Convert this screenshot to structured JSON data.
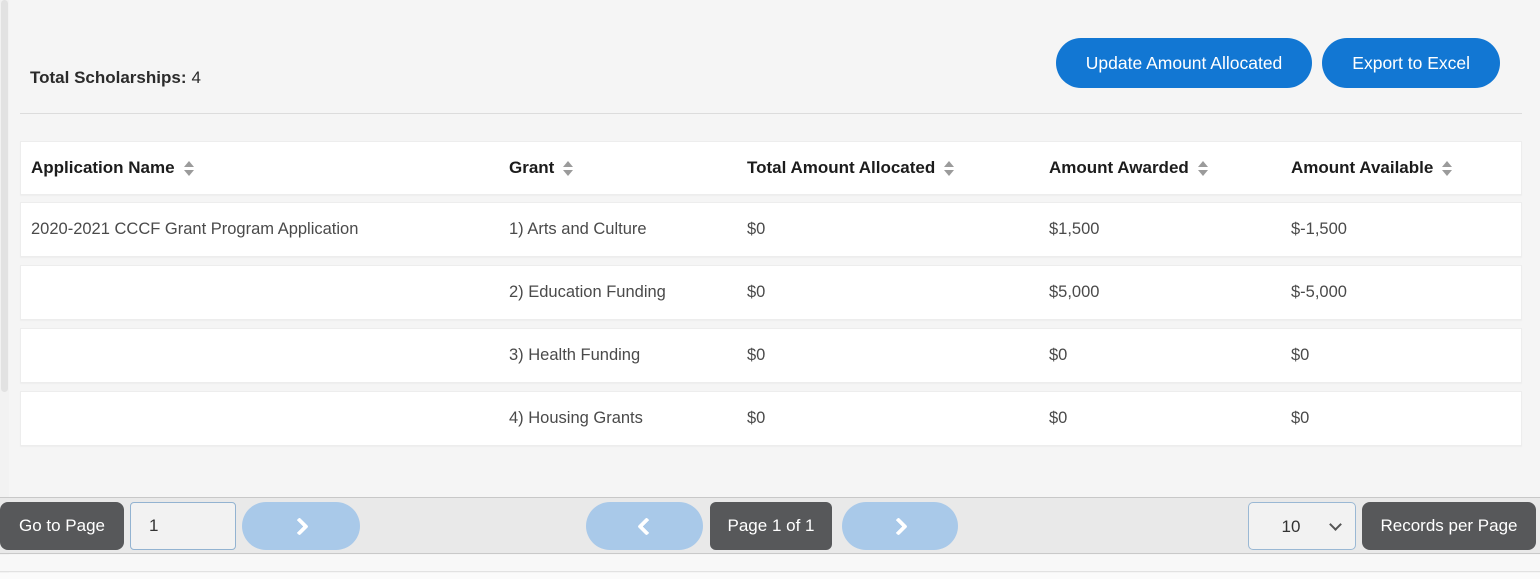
{
  "summary": {
    "label": "Total Scholarships:",
    "value": "4"
  },
  "toolbar": {
    "update_button": "Update Amount Allocated",
    "export_button": "Export to Excel"
  },
  "table": {
    "columns": [
      {
        "label": "Application Name",
        "sortable": true
      },
      {
        "label": "Grant",
        "sortable": true
      },
      {
        "label": "Total Amount Allocated",
        "sortable": true
      },
      {
        "label": "Amount Awarded",
        "sortable": true
      },
      {
        "label": "Amount Available",
        "sortable": true
      }
    ],
    "rows": [
      {
        "application_name": "2020-2021 CCCF Grant Program Application",
        "grant": "1) Arts and Culture",
        "total_amount_allocated": "$0",
        "amount_awarded": "$1,500",
        "amount_available": "$-1,500"
      },
      {
        "application_name": "",
        "grant": "2) Education Funding",
        "total_amount_allocated": "$0",
        "amount_awarded": "$5,000",
        "amount_available": "$-5,000"
      },
      {
        "application_name": "",
        "grant": "3) Health Funding",
        "total_amount_allocated": "$0",
        "amount_awarded": "$0",
        "amount_available": "$0"
      },
      {
        "application_name": "",
        "grant": "4) Housing Grants",
        "total_amount_allocated": "$0",
        "amount_awarded": "$0",
        "amount_available": "$0"
      }
    ]
  },
  "pagination": {
    "go_to_page_label": "Go to Page",
    "page_input_value": "1",
    "page_status": "Page 1 of 1",
    "records_per_page_value": "10",
    "records_per_page_label": "Records per Page"
  },
  "icons": {
    "sort": "up-down-triangles",
    "prev": "chevron-left",
    "next": "chevron-right",
    "select": "chevron-down"
  },
  "colors": {
    "primary_blue": "#1277d3",
    "light_blue_pill": "#a9c9e9",
    "dark_gray_button": "#57585a",
    "pagination_bar": "#e9e9e9",
    "page_background": "#f5f5f5"
  }
}
